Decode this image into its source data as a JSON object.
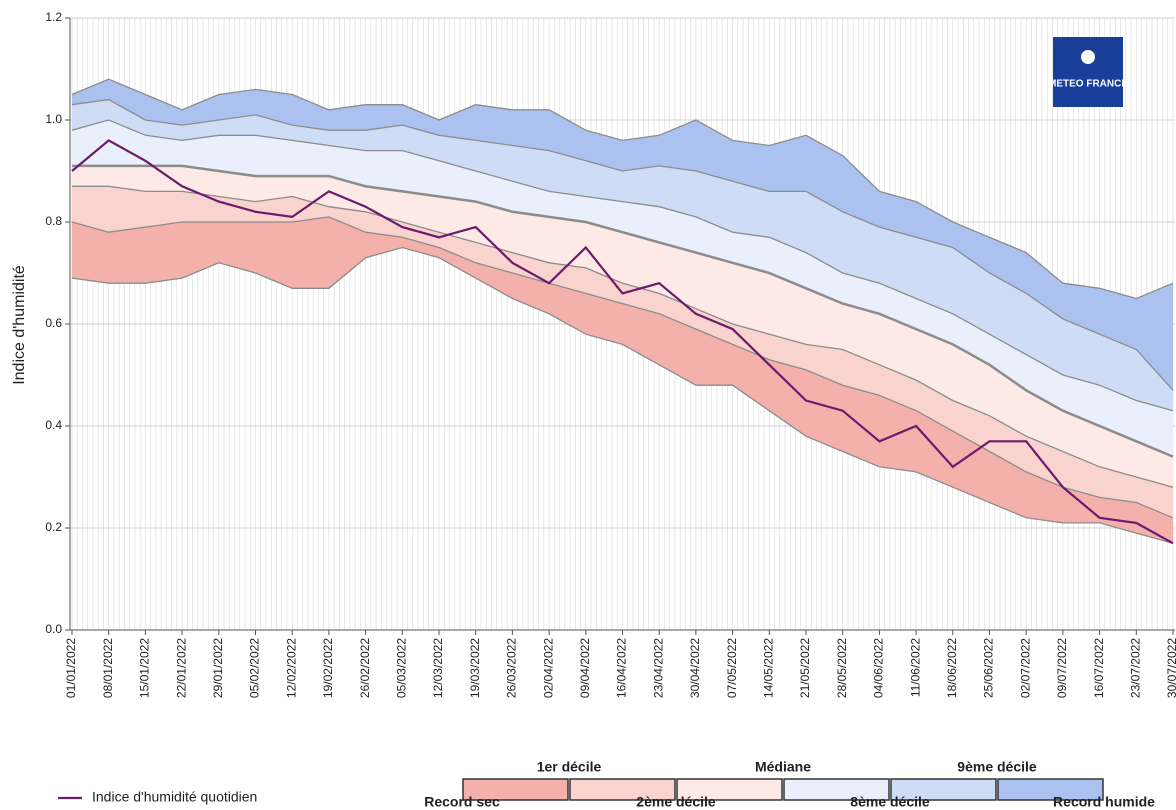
{
  "chart_data": {
    "type": "percentile-bands",
    "y_label": "Indice d'humidité",
    "logo": "METEO FRANCE",
    "x": [
      "01/01/2022",
      "08/01/2022",
      "15/01/2022",
      "22/01/2022",
      "29/01/2022",
      "05/02/2022",
      "12/02/2022",
      "19/02/2022",
      "26/02/2022",
      "05/03/2022",
      "12/03/2022",
      "19/03/2022",
      "26/03/2022",
      "02/04/2022",
      "09/04/2022",
      "16/04/2022",
      "23/04/2022",
      "30/04/2022",
      "07/05/2022",
      "14/05/2022",
      "21/05/2022",
      "28/05/2022",
      "04/06/2022",
      "11/06/2022",
      "18/06/2022",
      "25/06/2022",
      "02/07/2022",
      "09/07/2022",
      "16/07/2022",
      "23/07/2022",
      "30/07/2022"
    ],
    "ylim": [
      0,
      1.2
    ],
    "yticks": [
      {
        "value": 0,
        "label": "0.0"
      },
      0.2,
      0.4,
      0.6,
      0.8,
      {
        "value": 1,
        "label": "1.0"
      },
      1.2
    ],
    "grid": true,
    "bound_color": "#8c8c8c",
    "band_colors": [
      "#f4b1ab",
      "#f9d3ce",
      "#fde9e6",
      "#e9effb",
      "#cfdcf6",
      "#abc1ef"
    ],
    "bounds": [
      {
        "name": "Record sec",
        "values": [
          0.69,
          0.68,
          0.68,
          0.69,
          0.72,
          0.7,
          0.67,
          0.67,
          0.73,
          0.75,
          0.73,
          0.69,
          0.65,
          0.62,
          0.58,
          0.56,
          0.52,
          0.48,
          0.48,
          0.43,
          0.38,
          0.35,
          0.32,
          0.31,
          0.28,
          0.25,
          0.22,
          0.21,
          0.21,
          0.19,
          0.17
        ]
      },
      {
        "name": "1er décile",
        "values": [
          0.8,
          0.78,
          0.79,
          0.8,
          0.8,
          0.8,
          0.8,
          0.81,
          0.78,
          0.77,
          0.75,
          0.72,
          0.7,
          0.68,
          0.66,
          0.64,
          0.62,
          0.59,
          0.56,
          0.53,
          0.51,
          0.48,
          0.46,
          0.43,
          0.39,
          0.35,
          0.31,
          0.28,
          0.26,
          0.25,
          0.22
        ]
      },
      {
        "name": "2ème décile",
        "values": [
          0.87,
          0.87,
          0.86,
          0.86,
          0.85,
          0.84,
          0.85,
          0.83,
          0.82,
          0.8,
          0.78,
          0.76,
          0.74,
          0.72,
          0.71,
          0.68,
          0.66,
          0.63,
          0.6,
          0.58,
          0.56,
          0.55,
          0.52,
          0.49,
          0.45,
          0.42,
          0.38,
          0.35,
          0.32,
          0.3,
          0.28
        ]
      },
      {
        "name": "Médiane",
        "values": [
          0.91,
          0.91,
          0.91,
          0.91,
          0.9,
          0.89,
          0.89,
          0.89,
          0.87,
          0.86,
          0.85,
          0.84,
          0.82,
          0.81,
          0.8,
          0.78,
          0.76,
          0.74,
          0.72,
          0.7,
          0.67,
          0.64,
          0.62,
          0.59,
          0.56,
          0.52,
          0.47,
          0.43,
          0.4,
          0.37,
          0.34
        ]
      },
      {
        "name": "8ème décile",
        "values": [
          0.98,
          1.0,
          0.97,
          0.96,
          0.97,
          0.97,
          0.96,
          0.95,
          0.94,
          0.94,
          0.92,
          0.9,
          0.88,
          0.86,
          0.85,
          0.84,
          0.83,
          0.81,
          0.78,
          0.77,
          0.74,
          0.7,
          0.68,
          0.65,
          0.62,
          0.58,
          0.54,
          0.5,
          0.48,
          0.45,
          0.43
        ]
      },
      {
        "name": "9ème décile",
        "values": [
          1.03,
          1.04,
          1.0,
          0.99,
          1.0,
          1.01,
          0.99,
          0.98,
          0.98,
          0.99,
          0.97,
          0.96,
          0.95,
          0.94,
          0.92,
          0.9,
          0.91,
          0.9,
          0.88,
          0.86,
          0.86,
          0.82,
          0.79,
          0.77,
          0.75,
          0.7,
          0.66,
          0.61,
          0.58,
          0.55,
          0.47
        ]
      },
      {
        "name": "Record humide",
        "values": [
          1.05,
          1.08,
          1.05,
          1.02,
          1.05,
          1.06,
          1.05,
          1.02,
          1.03,
          1.03,
          1.0,
          1.03,
          1.02,
          1.02,
          0.98,
          0.96,
          0.97,
          1.0,
          0.96,
          0.95,
          0.97,
          0.93,
          0.86,
          0.84,
          0.8,
          0.77,
          0.74,
          0.68,
          0.67,
          0.65,
          0.68
        ]
      }
    ],
    "series": [
      {
        "name": "Indice d'humidité quotidien",
        "color": "#6b1a6e",
        "values": [
          0.9,
          0.96,
          0.92,
          0.87,
          0.84,
          0.82,
          0.81,
          0.86,
          0.83,
          0.79,
          0.77,
          0.79,
          0.72,
          0.68,
          0.75,
          0.66,
          0.68,
          0.62,
          0.59,
          0.52,
          0.45,
          0.43,
          0.37,
          0.4,
          0.32,
          0.37,
          0.37,
          0.28,
          0.22,
          0.21,
          0.17
        ]
      }
    ]
  }
}
